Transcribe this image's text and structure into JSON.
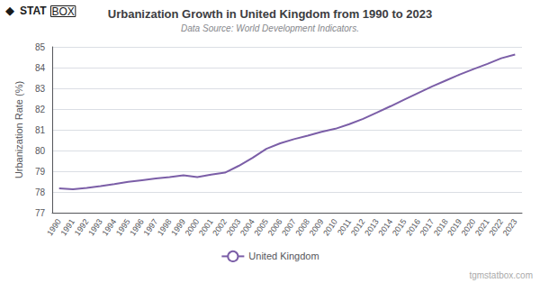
{
  "chart_data": {
    "type": "line",
    "title": "Urbanization Growth in United Kingdom from 1990 to 2023",
    "subtitle": "Data Source: World Development Indicators.",
    "y_label": "Urbanization Rate (%)",
    "annotations": [
      "◆",
      "STAT",
      "BOX",
      "tgmstatbox.com"
    ],
    "categories": [
      "1990",
      "1991",
      "1992",
      "1993",
      "1994",
      "1995",
      "1996",
      "1997",
      "1998",
      "1999",
      "2000",
      "2001",
      "2002",
      "2003",
      "2004",
      "2005",
      "2006",
      "2007",
      "2008",
      "2009",
      "2010",
      "2011",
      "2012",
      "2013",
      "2014",
      "2015",
      "2016",
      "2017",
      "2018",
      "2019",
      "2020",
      "2021",
      "2022",
      "2023"
    ],
    "series": [
      {
        "name": "United Kingdom",
        "color": "#7B5EA7",
        "values": [
          78.17,
          78.13,
          78.2,
          78.28,
          78.38,
          78.49,
          78.57,
          78.65,
          78.72,
          78.8,
          78.72,
          78.84,
          78.93,
          79.26,
          79.65,
          80.08,
          80.35,
          80.55,
          80.72,
          80.9,
          81.05,
          81.27,
          81.53,
          81.83,
          82.14,
          82.46,
          82.78,
          83.09,
          83.38,
          83.67,
          83.93,
          84.18,
          84.45,
          84.63
        ]
      }
    ],
    "ylim": [
      77,
      85
    ],
    "yticks": [
      77,
      78,
      79,
      80,
      81,
      82,
      83,
      84,
      85
    ],
    "grid": true,
    "legend": "bottom"
  }
}
